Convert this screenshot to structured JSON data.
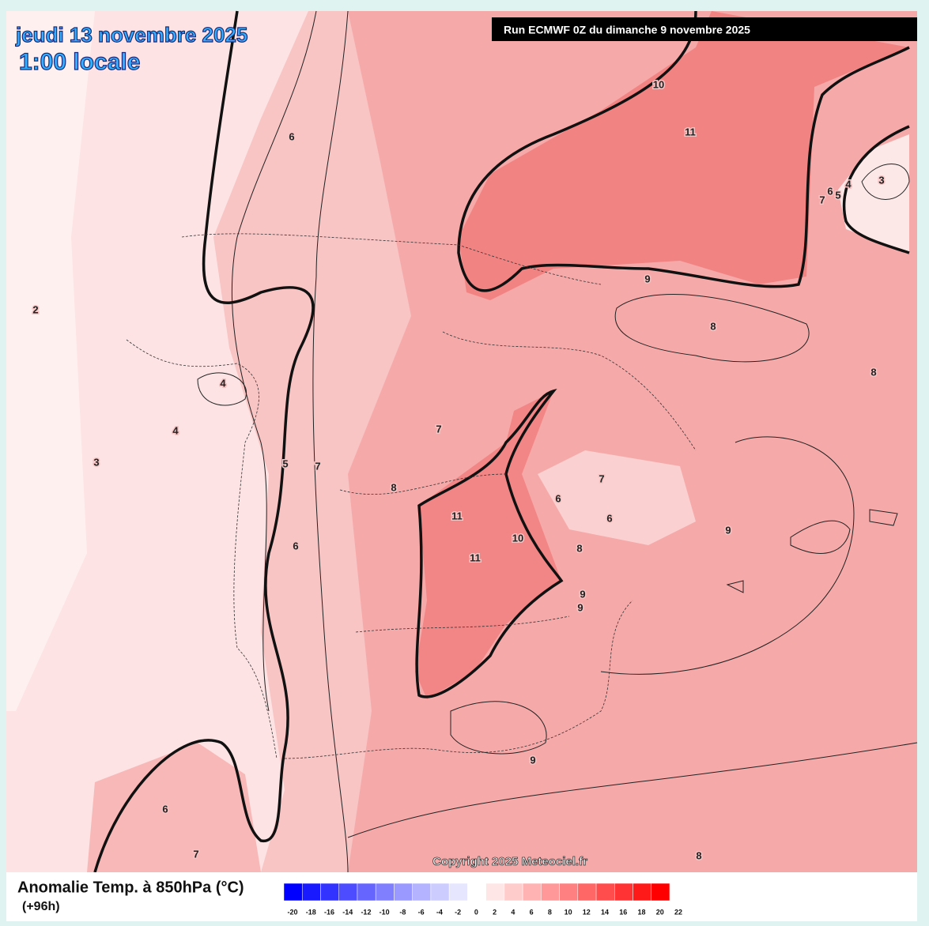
{
  "header": {
    "date": "jeudi 13 novembre 2025",
    "time": "1:00 locale",
    "run": "Run ECMWF 0Z du dimanche 9 novembre 2025"
  },
  "map": {
    "contour_labels": [
      10,
      11,
      6,
      3,
      4,
      5,
      6,
      7,
      9,
      2,
      8,
      8,
      4,
      4,
      7,
      3,
      5,
      7,
      8,
      7,
      6,
      6,
      11,
      10,
      9,
      6,
      8,
      11,
      9,
      9,
      9,
      6,
      7,
      8
    ],
    "copyright": "Copyright 2025 Meteociel.fr"
  },
  "legend": {
    "title": "Anomalie Temp. à 850hPa (°C)",
    "step": "(+96h)",
    "scale": [
      -20,
      -18,
      -16,
      -14,
      -12,
      -10,
      -8,
      -6,
      -4,
      -2,
      0,
      2,
      4,
      6,
      8,
      10,
      12,
      14,
      16,
      18,
      20,
      22
    ],
    "colors": [
      "#0000ff",
      "#1a1aff",
      "#3333ff",
      "#4d4dff",
      "#6666ff",
      "#8080ff",
      "#9999ff",
      "#b3b3ff",
      "#ccccff",
      "#e6e6ff",
      "#ffffff",
      "#ffe6e6",
      "#ffcccc",
      "#ffb3b3",
      "#ff9999",
      "#ff8080",
      "#ff6666",
      "#ff4d4d",
      "#ff3333",
      "#ff1a1a",
      "#ff0000"
    ]
  }
}
